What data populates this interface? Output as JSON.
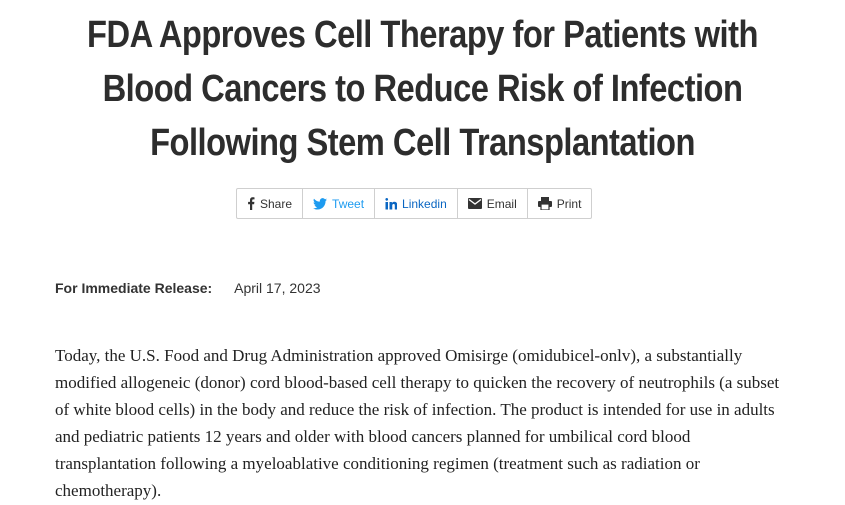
{
  "headline": {
    "line1": "FDA Approves Cell Therapy for Patients with",
    "line2": "Blood Cancers to Reduce Risk of Infection",
    "line3": "Following Stem Cell Transplantation"
  },
  "share_bar": {
    "items": [
      {
        "label": "Share",
        "icon": "facebook-icon"
      },
      {
        "label": "Tweet",
        "icon": "twitter-icon"
      },
      {
        "label": "Linkedin",
        "icon": "linkedin-icon"
      },
      {
        "label": "Email",
        "icon": "email-icon"
      },
      {
        "label": "Print",
        "icon": "print-icon"
      }
    ],
    "colors": {
      "twitter": "#1d9bf0",
      "linkedin": "#0a66c2"
    }
  },
  "release": {
    "label": "For Immediate Release:",
    "date": "April 17, 2023"
  },
  "body": {
    "paragraph1": "Today, the U.S. Food and Drug Administration approved Omisirge (omidubicel-onlv), a substantially modified allogeneic (donor) cord blood-based cell therapy to quicken the recovery of neutrophils (a subset of white blood cells) in the body and reduce the risk of infection. The product is intended for use in adults and pediatric patients 12 years and older with blood cancers planned for umbilical cord blood transplantation following a myeloablative conditioning regimen (treatment such as radiation or chemotherapy)."
  }
}
